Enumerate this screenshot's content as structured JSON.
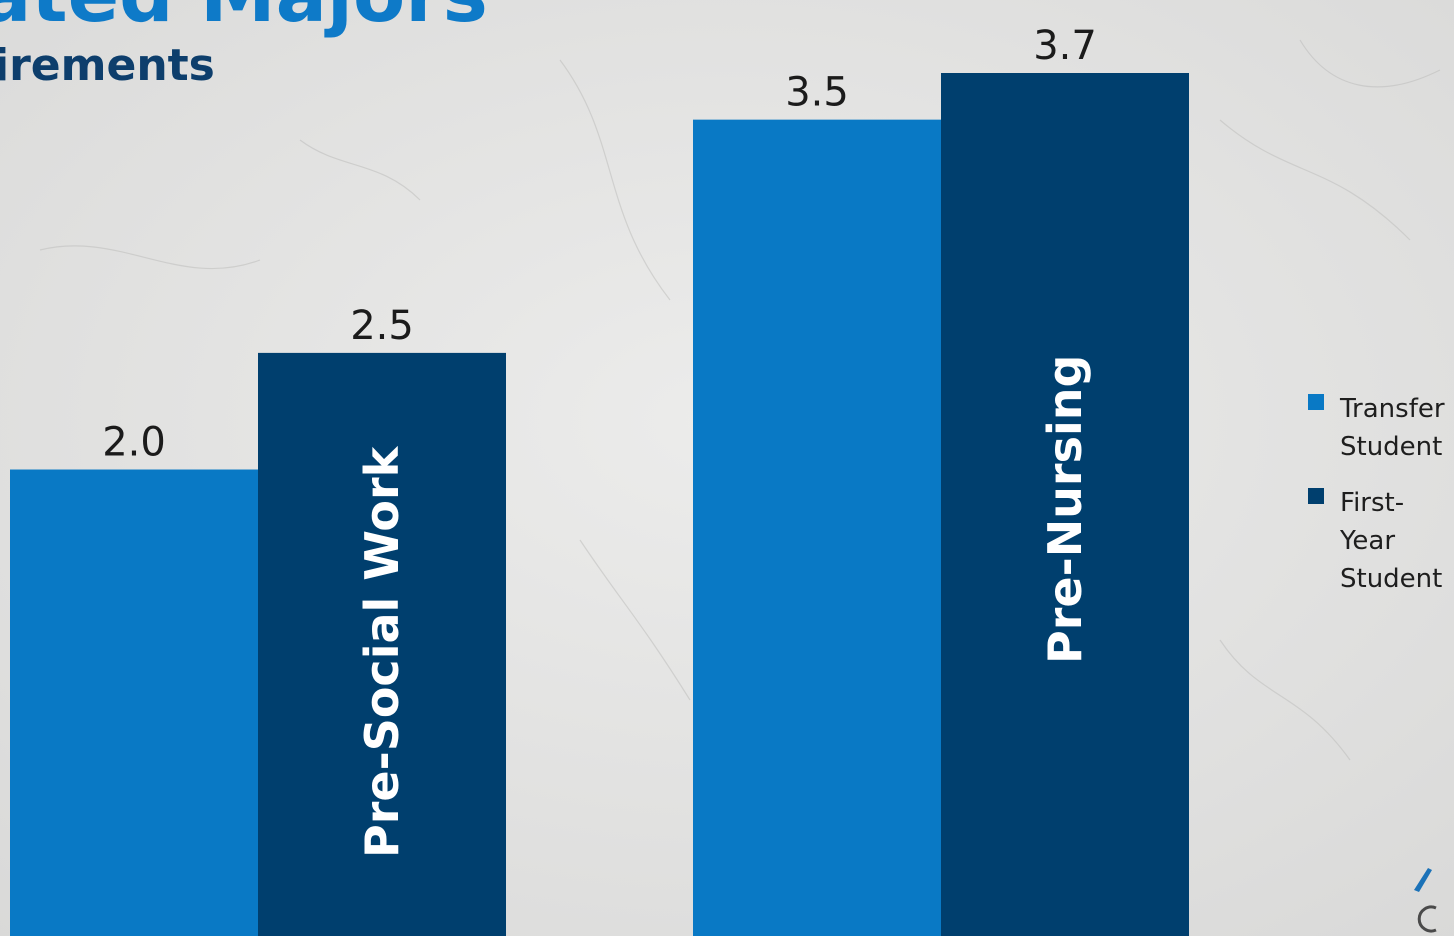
{
  "slide": {
    "title": "ated Majors",
    "subtitle": "irements"
  },
  "colors": {
    "transfer": "#0979c5",
    "first_year": "#003f6e",
    "category_label": "#ffffff",
    "value_label": "#1b1b1b"
  },
  "legend": {
    "items": [
      {
        "label": "Transfer Student",
        "color": "#0979c5"
      },
      {
        "label": "First-Year Student",
        "color": "#003f6e"
      }
    ]
  },
  "chart_data": {
    "type": "bar",
    "categories": [
      "Pre-Social Work",
      "Pre-Nursing"
    ],
    "series": [
      {
        "name": "Transfer Student",
        "values": [
          2.0,
          3.5
        ]
      },
      {
        "name": "First-Year Student",
        "values": [
          2.5,
          3.7
        ]
      }
    ],
    "value_labels": [
      [
        "2.0",
        "3.5"
      ],
      [
        "2.5",
        "3.7"
      ]
    ],
    "ylim": [
      0,
      3.7
    ],
    "xlabel": "",
    "ylabel": "",
    "grid": false,
    "legend_position": "right"
  }
}
